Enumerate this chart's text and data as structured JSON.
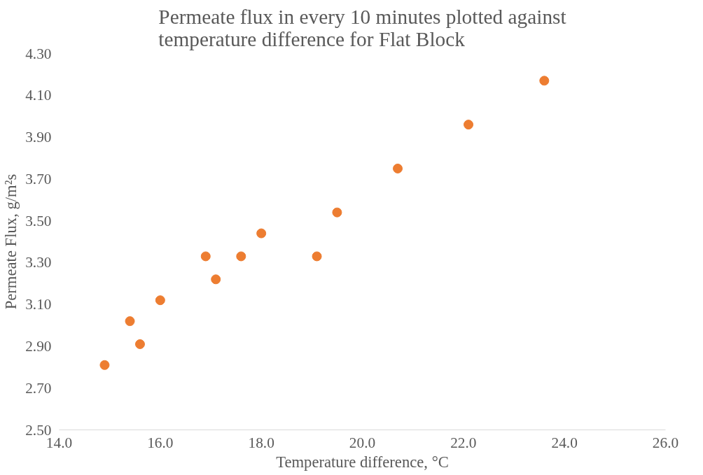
{
  "chart_data": {
    "type": "scatter",
    "title": "Permeate flux in every 10 minutes plotted against temperature difference for Flat Block",
    "xlabel": "Temperature difference, °C",
    "ylabel": "Permeate Flux, g/m²s",
    "x": [
      14.9,
      15.4,
      15.6,
      16.0,
      16.9,
      17.1,
      17.6,
      18.0,
      19.1,
      19.5,
      20.7,
      22.1,
      23.6
    ],
    "series": [
      {
        "color": "#ed7d31",
        "values": [
          2.81,
          3.02,
          2.91,
          3.12,
          3.33,
          3.22,
          3.33,
          3.44,
          3.33,
          3.54,
          3.75,
          3.96,
          4.17
        ]
      }
    ],
    "xlim": [
      14.0,
      26.0
    ],
    "xticks": [
      {
        "value": 14,
        "label": "14.0"
      },
      {
        "value": 16,
        "label": "16.0"
      },
      {
        "value": 18,
        "label": "18.0"
      },
      {
        "value": 20,
        "label": "20.0"
      },
      {
        "value": 22,
        "label": "22.0"
      },
      {
        "value": 24,
        "label": "24.0"
      },
      {
        "value": 26,
        "label": "26.0"
      }
    ],
    "ylim": [
      2.5,
      4.3
    ],
    "yticks": [
      {
        "value": 2.5,
        "label": "2.50"
      },
      {
        "value": 2.7,
        "label": "2.70"
      },
      {
        "value": 2.9,
        "label": "2.90"
      },
      {
        "value": 3.1,
        "label": "3.10"
      },
      {
        "value": 3.3,
        "label": "3.30"
      },
      {
        "value": 3.5,
        "label": "3.50"
      },
      {
        "value": 3.7,
        "label": "3.70"
      },
      {
        "value": 3.9,
        "label": "3.90"
      },
      {
        "value": 4.1,
        "label": "4.10"
      },
      {
        "value": 4.3,
        "label": "4.30"
      }
    ],
    "grid": false,
    "marker": "circle"
  }
}
